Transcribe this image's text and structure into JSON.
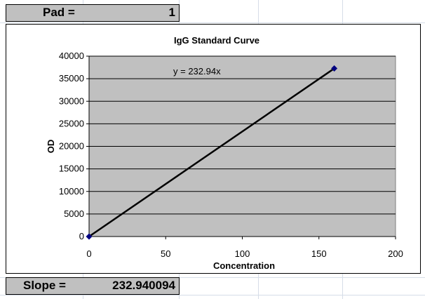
{
  "pad": {
    "label": "Pad =",
    "value": "1"
  },
  "slope": {
    "label": "Slope =",
    "value": "232.940094"
  },
  "colors": {
    "plot_area": "#c0c0c0",
    "cell_fill": "#c0c0c0",
    "line": "#000000",
    "marker": "#000080"
  },
  "chart_data": {
    "type": "scatter",
    "title": "IgG Standard Curve",
    "xlabel": "Concentration",
    "ylabel": "OD",
    "xlim": [
      0,
      200
    ],
    "ylim": [
      0,
      40000
    ],
    "x_ticks": [
      "0",
      "50",
      "100",
      "150",
      "200"
    ],
    "y_ticks": [
      "0",
      "5000",
      "10000",
      "15000",
      "20000",
      "25000",
      "30000",
      "35000",
      "40000"
    ],
    "grid": "horizontal",
    "legend": "none",
    "series": [
      {
        "x": [
          0,
          160
        ],
        "y": [
          0,
          37270
        ],
        "marker": "diamond"
      }
    ],
    "trendline": {
      "slope": 232.94,
      "intercept": 0,
      "x_range": [
        0,
        160
      ],
      "equation": "y = 232.94x"
    }
  }
}
